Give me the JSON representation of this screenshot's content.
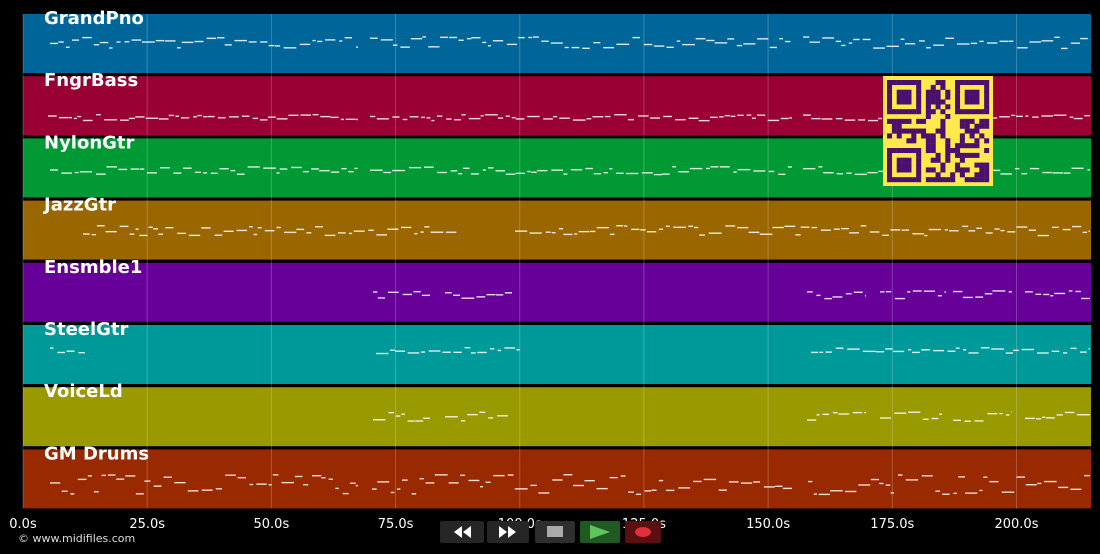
{
  "timeline": {
    "duration_max": 215,
    "ticks": [
      {
        "value": 0,
        "label": "0.0s"
      },
      {
        "value": 25,
        "label": "25.0s"
      },
      {
        "value": 50,
        "label": "50.0s"
      },
      {
        "value": 75,
        "label": "75.0s"
      },
      {
        "value": 100,
        "label": "100.0s"
      },
      {
        "value": 125,
        "label": "125.0s"
      },
      {
        "value": 150,
        "label": "150.0s"
      },
      {
        "value": 175,
        "label": "175.0s"
      },
      {
        "value": 200,
        "label": "200.0s"
      }
    ]
  },
  "tracks": [
    {
      "name": "GrandPno",
      "color": "#006699"
    },
    {
      "name": "FngrBass",
      "color": "#990033"
    },
    {
      "name": "NylonGtr",
      "color": "#009933"
    },
    {
      "name": "JazzGtr",
      "color": "#996600"
    },
    {
      "name": "Ensmble1",
      "color": "#660099"
    },
    {
      "name": "SteelGtr",
      "color": "#009999"
    },
    {
      "name": "VoiceLd",
      "color": "#999900"
    },
    {
      "name": "GM Drums",
      "color": "#992900"
    }
  ],
  "credit": "© www.midifiles.com",
  "transport": {
    "rewind_icon": "rewind-icon",
    "forward_icon": "fast-forward-icon",
    "stop_icon": "stop-icon",
    "play_icon": "play-icon",
    "record_icon": "record-icon"
  },
  "qr_code": {
    "color": "#ffe94d",
    "fg": "#4a1070"
  }
}
